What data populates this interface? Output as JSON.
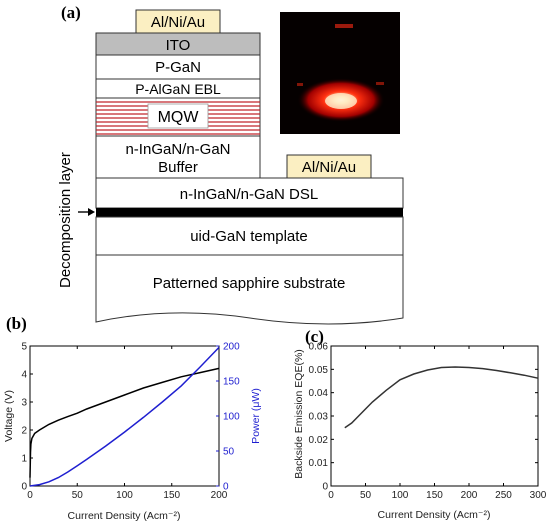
{
  "panel_labels": {
    "a": "(a)",
    "b": "(b)",
    "c": "(c)"
  },
  "device": {
    "top_contact": "Al/Ni/Au",
    "ito": "ITO",
    "p_gan": "P-GaN",
    "p_algan": "P-AlGaN EBL",
    "mqw": "MQW",
    "buffer_line1": "n-InGaN/n-GaN",
    "buffer_line2": "Buffer",
    "n_contact": "Al/Ni/Au",
    "dsl": "n-InGaN/n-GaN DSL",
    "template": "uid-GaN template",
    "substrate": "Patterned sapphire substrate",
    "decomposition_label": "Decomposition layer",
    "colors": {
      "contact_fill": "#fbefc2",
      "ito_fill": "#bdbdbd",
      "mqw_line": "#c0262c",
      "emission": "#ff2010"
    }
  },
  "chart_data": [
    {
      "type": "line",
      "xlabel": "Current Density (Acm⁻²)",
      "ylabel": "Voltage (V)",
      "y2label": "Power (μW)",
      "xlim": [
        0,
        200
      ],
      "ylim": [
        0,
        5
      ],
      "y2lim": [
        0,
        200
      ],
      "xticks": [
        0,
        50,
        100,
        150,
        200
      ],
      "yticks": [
        0,
        1,
        2,
        3,
        4,
        5
      ],
      "y2ticks": [
        0,
        50,
        100,
        150,
        200
      ],
      "series": [
        {
          "axis": "left",
          "color": "#000000",
          "x": [
            0,
            0.5,
            1,
            2,
            5,
            10,
            20,
            30,
            40,
            50,
            60,
            80,
            100,
            120,
            140,
            160,
            180,
            200
          ],
          "y": [
            0.3,
            1.2,
            1.5,
            1.7,
            1.88,
            2.0,
            2.2,
            2.35,
            2.48,
            2.6,
            2.75,
            3.0,
            3.25,
            3.5,
            3.7,
            3.9,
            4.05,
            4.2
          ]
        },
        {
          "axis": "right",
          "color": "#1f1fd0",
          "x": [
            0,
            10,
            20,
            30,
            40,
            50,
            60,
            80,
            100,
            120,
            140,
            160,
            180,
            200
          ],
          "y": [
            0,
            2,
            6,
            12,
            20,
            29,
            38,
            57,
            77,
            98,
            120,
            143,
            170,
            198
          ]
        }
      ]
    },
    {
      "type": "line",
      "xlabel": "Current Density (Acm⁻²)",
      "ylabel": "Backside Emission EQE(%)",
      "xlim": [
        0,
        300
      ],
      "ylim": [
        0,
        0.06
      ],
      "xticks": [
        0,
        50,
        100,
        150,
        200,
        250,
        300
      ],
      "yticks": [
        0,
        0.01,
        0.02,
        0.03,
        0.04,
        0.05,
        0.06
      ],
      "ytick_labels": [
        "0",
        "0.01",
        "0.02",
        "0.03",
        "0.04",
        "0.05",
        "0.06"
      ],
      "series": [
        {
          "color": "#333333",
          "x": [
            20,
            30,
            40,
            50,
            60,
            80,
            100,
            120,
            140,
            160,
            180,
            200,
            220,
            240,
            260,
            280,
            300
          ],
          "y": [
            0.025,
            0.027,
            0.03,
            0.033,
            0.036,
            0.041,
            0.0455,
            0.048,
            0.0497,
            0.0508,
            0.051,
            0.0508,
            0.0503,
            0.0495,
            0.0485,
            0.0475,
            0.0462
          ]
        }
      ]
    }
  ]
}
